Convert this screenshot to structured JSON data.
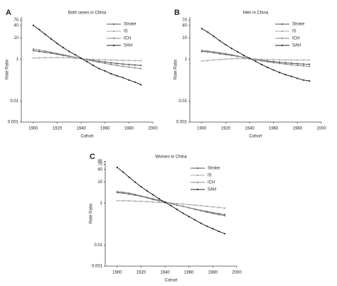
{
  "chart_data": [
    {
      "type": "line",
      "label": "A",
      "title": "Both sexes in China",
      "x_label": "Cohort",
      "y_label": "Rate Ratio",
      "log_y": true,
      "x": [
        1900,
        1905,
        1910,
        1915,
        1920,
        1925,
        1930,
        1935,
        1940,
        1945,
        1950,
        1955,
        1960,
        1965,
        1970,
        1975,
        1980,
        1985,
        1990
      ],
      "xlim": [
        1890,
        2000
      ],
      "xticks": [
        1900,
        1920,
        1940,
        1960,
        1980,
        2000
      ],
      "ylim": [
        0.001,
        100
      ],
      "yticks": [
        0.001,
        0.01,
        1,
        10,
        40,
        70
      ],
      "series": [
        {
          "name": "Stroke",
          "color": "#555555",
          "values": [
            2.5,
            2.3,
            2.1,
            1.9,
            1.7,
            1.5,
            1.35,
            1.2,
            1.05,
            0.95,
            0.85,
            0.78,
            0.72,
            0.66,
            0.62,
            0.58,
            0.55,
            0.52,
            0.5
          ]
        },
        {
          "name": "IS",
          "color": "#aaaaaa",
          "values": [
            1.1,
            1.12,
            1.15,
            1.17,
            1.18,
            1.17,
            1.15,
            1.1,
            1.05,
            1,
            0.97,
            0.95,
            0.92,
            0.9,
            0.88,
            0.86,
            0.85,
            0.85,
            0.84
          ]
        },
        {
          "name": "ICH",
          "color": "#888888",
          "values": [
            3,
            2.7,
            2.4,
            2.1,
            1.85,
            1.6,
            1.4,
            1.2,
            1.05,
            0.92,
            0.8,
            0.7,
            0.62,
            0.55,
            0.5,
            0.45,
            0.42,
            0.38,
            0.35
          ]
        },
        {
          "name": "SAH",
          "color": "#222222",
          "values": [
            40,
            25,
            15,
            9,
            5.5,
            3.5,
            2.3,
            1.6,
            1.1,
            0.75,
            0.5,
            0.35,
            0.27,
            0.2,
            0.16,
            0.13,
            0.1,
            0.08,
            0.06
          ]
        }
      ]
    },
    {
      "type": "line",
      "label": "B",
      "title": "Men in China",
      "x_label": "Cohort",
      "y_label": "Rate Ratio",
      "log_y": true,
      "x": [
        1900,
        1905,
        1910,
        1915,
        1920,
        1925,
        1930,
        1935,
        1940,
        1945,
        1950,
        1955,
        1960,
        1965,
        1970,
        1975,
        1980,
        1985,
        1990
      ],
      "xlim": [
        1890,
        2000
      ],
      "xticks": [
        1900,
        1920,
        1940,
        1960,
        1980,
        2000
      ],
      "ylim": [
        0.001,
        100
      ],
      "yticks": [
        0.001,
        0.01,
        1,
        10,
        40,
        70
      ],
      "series": [
        {
          "name": "Stroke",
          "color": "#555555",
          "values": [
            2.3,
            2.2,
            2.0,
            1.8,
            1.65,
            1.5,
            1.35,
            1.2,
            1.05,
            0.95,
            0.87,
            0.8,
            0.75,
            0.7,
            0.66,
            0.63,
            0.6,
            0.58,
            0.56
          ]
        },
        {
          "name": "IS",
          "color": "#aaaaaa",
          "values": [
            0.8,
            0.85,
            0.9,
            0.95,
            1,
            1.03,
            1.05,
            1.05,
            1.03,
            1,
            0.97,
            0.95,
            0.93,
            0.92,
            0.9,
            0.9,
            0.9,
            0.9,
            0.9
          ]
        },
        {
          "name": "ICH",
          "color": "#888888",
          "values": [
            2.6,
            2.4,
            2.2,
            2.0,
            1.8,
            1.6,
            1.4,
            1.2,
            1.05,
            0.93,
            0.82,
            0.74,
            0.67,
            0.62,
            0.57,
            0.53,
            0.5,
            0.47,
            0.45
          ]
        },
        {
          "name": "SAH",
          "color": "#222222",
          "values": [
            28,
            19,
            12,
            7.5,
            4.8,
            3.2,
            2.2,
            1.5,
            1.1,
            0.78,
            0.55,
            0.4,
            0.3,
            0.23,
            0.18,
            0.15,
            0.12,
            0.1,
            0.09
          ]
        }
      ]
    },
    {
      "type": "line",
      "label": "C",
      "title": "Women  in China",
      "x_label": "Cohort",
      "y_label": "Rate Ratio",
      "log_y": true,
      "x": [
        1900,
        1905,
        1910,
        1915,
        1920,
        1925,
        1930,
        1935,
        1940,
        1945,
        1950,
        1955,
        1960,
        1965,
        1970,
        1975,
        1980,
        1985,
        1990
      ],
      "xlim": [
        1890,
        2000
      ],
      "xticks": [
        1900,
        1920,
        1940,
        1960,
        1980,
        2000
      ],
      "ylim": [
        0.001,
        100
      ],
      "yticks": [
        0.001,
        0.01,
        1,
        10,
        40,
        70,
        95
      ],
      "series": [
        {
          "name": "Stroke",
          "color": "#555555",
          "values": [
            3.2,
            3.0,
            2.7,
            2.4,
            2.1,
            1.8,
            1.5,
            1.3,
            1.1,
            0.95,
            0.8,
            0.7,
            0.6,
            0.52,
            0.45,
            0.4,
            0.35,
            0.31,
            0.28
          ]
        },
        {
          "name": "IS",
          "color": "#aaaaaa",
          "values": [
            1.3,
            1.3,
            1.28,
            1.25,
            1.22,
            1.18,
            1.13,
            1.08,
            1.03,
            1,
            0.95,
            0.9,
            0.85,
            0.8,
            0.75,
            0.7,
            0.66,
            0.62,
            0.58
          ]
        },
        {
          "name": "ICH",
          "color": "#888888",
          "values": [
            3.6,
            3.3,
            3.0,
            2.6,
            2.2,
            1.9,
            1.6,
            1.35,
            1.15,
            0.97,
            0.82,
            0.7,
            0.6,
            0.5,
            0.43,
            0.37,
            0.32,
            0.28,
            0.25
          ]
        },
        {
          "name": "SAH",
          "color": "#222222",
          "values": [
            50,
            30,
            17,
            10,
            6,
            3.8,
            2.5,
            1.6,
            1.1,
            0.75,
            0.5,
            0.33,
            0.23,
            0.16,
            0.11,
            0.08,
            0.06,
            0.045,
            0.035
          ]
        }
      ]
    }
  ]
}
